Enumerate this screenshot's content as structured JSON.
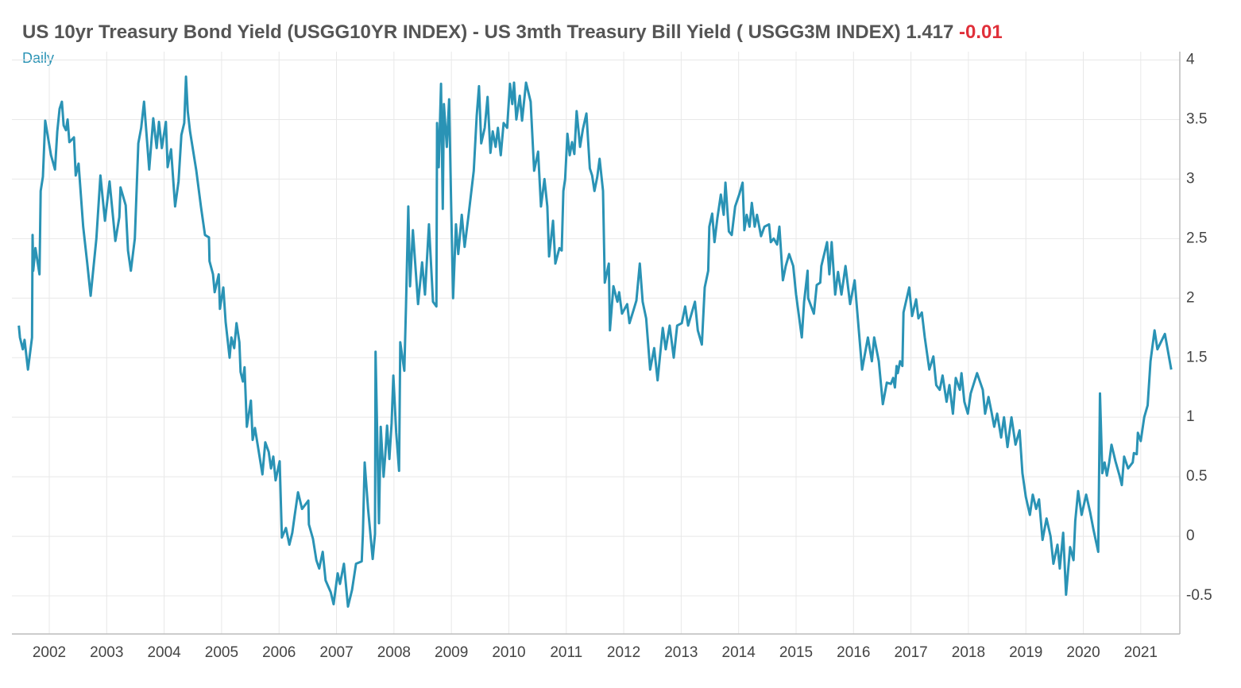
{
  "chart_data": {
    "type": "line",
    "title": "US 10yr Treasury Bond Yield (USGG10YR INDEX) - US 3mth Treasury Bill Yield ( USGG3M INDEX)",
    "last_value": "1.417",
    "change": "-0.01",
    "frequency": "Daily",
    "color": "#2a93b5",
    "change_color": "#e0303a",
    "xlim": [
      2001.35,
      2021.68
    ],
    "xticks": [
      2002,
      2003,
      2004,
      2005,
      2006,
      2007,
      2008,
      2009,
      2010,
      2011,
      2012,
      2013,
      2014,
      2015,
      2016,
      2017,
      2018,
      2019,
      2020,
      2021
    ],
    "ylim": [
      -0.82,
      4.07
    ],
    "yticks": [
      -0.5,
      0,
      0.5,
      1,
      1.5,
      2,
      2.5,
      3,
      3.5,
      4
    ],
    "grid": true,
    "x": [
      2001.47,
      2001.49,
      2001.54,
      2001.57,
      2001.63,
      2001.7,
      2001.71,
      2001.72,
      2001.76,
      2001.83,
      2001.85,
      2001.89,
      2001.93,
      2002.03,
      2002.1,
      2002.14,
      2002.18,
      2002.22,
      2002.25,
      2002.29,
      2002.32,
      2002.35,
      2002.43,
      2002.46,
      2002.51,
      2002.59,
      2002.66,
      2002.72,
      2002.82,
      2002.89,
      2002.97,
      2003.05,
      2003.15,
      2003.22,
      2003.24,
      2003.33,
      2003.37,
      2003.42,
      2003.49,
      2003.55,
      2003.6,
      2003.65,
      2003.74,
      2003.81,
      2003.87,
      2003.91,
      2003.96,
      2004.03,
      2004.06,
      2004.12,
      2004.19,
      2004.25,
      2004.3,
      2004.35,
      2004.38,
      2004.41,
      2004.45,
      2004.56,
      2004.64,
      2004.71,
      2004.78,
      2004.79,
      2004.85,
      2004.88,
      2004.95,
      2004.97,
      2005.03,
      2005.07,
      2005.14,
      2005.17,
      2005.22,
      2005.26,
      2005.31,
      2005.33,
      2005.37,
      2005.4,
      2005.44,
      2005.51,
      2005.54,
      2005.58,
      2005.71,
      2005.76,
      2005.82,
      2005.86,
      2005.9,
      2005.94,
      2006.01,
      2006.05,
      2006.12,
      2006.18,
      2006.23,
      2006.27,
      2006.33,
      2006.4,
      2006.51,
      2006.52,
      2006.59,
      2006.65,
      2006.7,
      2006.76,
      2006.81,
      2006.9,
      2006.95,
      2007.02,
      2007.06,
      2007.13,
      2007.2,
      2007.27,
      2007.34,
      2007.44,
      2007.46,
      2007.49,
      2007.55,
      2007.6,
      2007.63,
      2007.67,
      2007.68,
      2007.74,
      2007.77,
      2007.82,
      2007.85,
      2007.88,
      2007.92,
      2007.96,
      2007.99,
      2008.04,
      2008.09,
      2008.11,
      2008.18,
      2008.21,
      2008.25,
      2008.28,
      2008.33,
      2008.42,
      2008.49,
      2008.54,
      2008.61,
      2008.68,
      2008.74,
      2008.75,
      2008.78,
      2008.82,
      2008.85,
      2008.87,
      2008.92,
      2008.96,
      2009.0,
      2009.03,
      2009.08,
      2009.12,
      2009.18,
      2009.23,
      2009.3,
      2009.39,
      2009.44,
      2009.48,
      2009.52,
      2009.58,
      2009.63,
      2009.68,
      2009.72,
      2009.77,
      2009.81,
      2009.86,
      2009.91,
      2009.97,
      2010.02,
      2010.06,
      2010.09,
      2010.13,
      2010.19,
      2010.23,
      2010.3,
      2010.38,
      2010.44,
      2010.51,
      2010.56,
      2010.62,
      2010.67,
      2010.7,
      2010.77,
      2010.81,
      2010.88,
      2010.92,
      2010.95,
      2010.98,
      2011.02,
      2011.06,
      2011.1,
      2011.14,
      2011.18,
      2011.24,
      2011.29,
      2011.35,
      2011.41,
      2011.45,
      2011.49,
      2011.54,
      2011.58,
      2011.64,
      2011.67,
      2011.74,
      2011.76,
      2011.82,
      2011.89,
      2011.92,
      2011.97,
      2012.06,
      2012.1,
      2012.17,
      2012.22,
      2012.28,
      2012.33,
      2012.39,
      2012.46,
      2012.53,
      2012.59,
      2012.68,
      2012.73,
      2012.8,
      2012.87,
      2012.93,
      2013.01,
      2013.07,
      2013.12,
      2013.18,
      2013.24,
      2013.29,
      2013.36,
      2013.41,
      2013.47,
      2013.49,
      2013.54,
      2013.58,
      2013.63,
      2013.69,
      2013.74,
      2013.77,
      2013.83,
      2013.88,
      2013.94,
      2014.01,
      2014.07,
      2014.1,
      2014.14,
      2014.19,
      2014.23,
      2014.28,
      2014.32,
      2014.39,
      2014.45,
      2014.53,
      2014.56,
      2014.61,
      2014.67,
      2014.71,
      2014.77,
      2014.82,
      2014.88,
      2014.95,
      2015.0,
      2015.1,
      2015.14,
      2015.2,
      2015.21,
      2015.31,
      2015.36,
      2015.42,
      2015.44,
      2015.54,
      2015.58,
      2015.62,
      2015.68,
      2015.73,
      2015.79,
      2015.86,
      2015.94,
      2016.02,
      2016.15,
      2016.25,
      2016.32,
      2016.36,
      2016.44,
      2016.51,
      2016.58,
      2016.65,
      2016.69,
      2016.72,
      2016.75,
      2016.77,
      2016.81,
      2016.85,
      2016.87,
      2016.97,
      2017.02,
      2017.09,
      2017.13,
      2017.19,
      2017.24,
      2017.32,
      2017.39,
      2017.44,
      2017.5,
      2017.55,
      2017.62,
      2017.67,
      2017.73,
      2017.78,
      2017.85,
      2017.88,
      2017.93,
      2017.99,
      2018.04,
      2018.15,
      2018.25,
      2018.29,
      2018.35,
      2018.4,
      2018.45,
      2018.5,
      2018.57,
      2018.62,
      2018.68,
      2018.75,
      2018.82,
      2018.89,
      2018.94,
      2019.0,
      2019.07,
      2019.12,
      2019.18,
      2019.23,
      2019.29,
      2019.36,
      2019.43,
      2019.48,
      2019.55,
      2019.59,
      2019.65,
      2019.7,
      2019.77,
      2019.83,
      2019.86,
      2019.91,
      2019.97,
      2020.05,
      2020.12,
      2020.18,
      2020.26,
      2020.29,
      2020.33,
      2020.37,
      2020.41,
      2020.45,
      2020.49,
      2020.56,
      2020.63,
      2020.67,
      2020.71,
      2020.78,
      2020.86,
      2020.88,
      2020.93,
      2020.95,
      2021.0,
      2021.06,
      2021.12,
      2021.17,
      2021.24,
      2021.29,
      2021.42,
      2021.53
    ],
    "values": [
      1.77,
      1.67,
      1.57,
      1.65,
      1.4,
      1.67,
      2.53,
      2.23,
      2.42,
      2.2,
      2.9,
      3.02,
      3.49,
      3.2,
      3.08,
      3.4,
      3.59,
      3.65,
      3.45,
      3.41,
      3.5,
      3.31,
      3.35,
      3.03,
      3.13,
      2.6,
      2.3,
      2.02,
      2.5,
      3.03,
      2.65,
      2.98,
      2.48,
      2.68,
      2.93,
      2.78,
      2.4,
      2.23,
      2.5,
      3.3,
      3.43,
      3.65,
      3.08,
      3.51,
      3.26,
      3.48,
      3.26,
      3.48,
      3.1,
      3.25,
      2.77,
      2.98,
      3.37,
      3.47,
      3.86,
      3.57,
      3.4,
      3.07,
      2.77,
      2.53,
      2.51,
      2.31,
      2.2,
      2.05,
      2.2,
      1.91,
      2.09,
      1.8,
      1.5,
      1.67,
      1.58,
      1.79,
      1.63,
      1.38,
      1.3,
      1.42,
      0.92,
      1.14,
      0.81,
      0.91,
      0.52,
      0.79,
      0.71,
      0.57,
      0.67,
      0.47,
      0.63,
      -0.01,
      0.07,
      -0.07,
      0.03,
      0.17,
      0.37,
      0.23,
      0.3,
      0.1,
      -0.02,
      -0.2,
      -0.27,
      -0.13,
      -0.37,
      -0.47,
      -0.57,
      -0.31,
      -0.4,
      -0.23,
      -0.59,
      -0.45,
      -0.23,
      -0.21,
      0.03,
      0.62,
      0.23,
      -0.03,
      -0.19,
      0.02,
      1.55,
      0.11,
      0.92,
      0.5,
      0.69,
      0.93,
      0.65,
      0.95,
      1.35,
      0.87,
      0.55,
      1.63,
      1.39,
      1.93,
      2.77,
      2.1,
      2.57,
      1.95,
      2.3,
      2.03,
      2.62,
      1.97,
      1.93,
      3.47,
      3.1,
      3.8,
      2.75,
      3.63,
      3.27,
      3.67,
      2.7,
      2.0,
      2.62,
      2.37,
      2.7,
      2.43,
      2.7,
      3.07,
      3.53,
      3.78,
      3.3,
      3.43,
      3.69,
      3.22,
      3.4,
      3.27,
      3.43,
      3.2,
      3.47,
      3.43,
      3.8,
      3.63,
      3.81,
      3.5,
      3.7,
      3.49,
      3.81,
      3.65,
      3.07,
      3.23,
      2.77,
      3.0,
      2.77,
      2.35,
      2.65,
      2.29,
      2.42,
      2.4,
      2.9,
      3.0,
      3.38,
      3.2,
      3.31,
      3.21,
      3.57,
      3.27,
      3.42,
      3.55,
      3.09,
      3.03,
      2.9,
      3.02,
      3.17,
      2.9,
      2.13,
      2.29,
      1.73,
      2.1,
      1.97,
      2.05,
      1.87,
      1.95,
      1.79,
      1.9,
      1.98,
      2.29,
      1.97,
      1.83,
      1.4,
      1.58,
      1.31,
      1.75,
      1.57,
      1.77,
      1.5,
      1.77,
      1.79,
      1.93,
      1.77,
      1.87,
      1.97,
      1.73,
      1.61,
      2.09,
      2.23,
      2.6,
      2.71,
      2.47,
      2.67,
      2.87,
      2.7,
      2.97,
      2.56,
      2.53,
      2.77,
      2.87,
      2.97,
      2.57,
      2.7,
      2.6,
      2.8,
      2.6,
      2.7,
      2.52,
      2.6,
      2.62,
      2.47,
      2.5,
      2.45,
      2.6,
      2.15,
      2.27,
      2.37,
      2.27,
      2.03,
      1.67,
      1.97,
      2.23,
      2.0,
      1.87,
      2.11,
      2.13,
      2.27,
      2.47,
      2.2,
      2.47,
      2.03,
      2.22,
      2.03,
      2.27,
      1.95,
      2.15,
      1.4,
      1.67,
      1.47,
      1.67,
      1.47,
      1.11,
      1.29,
      1.28,
      1.33,
      1.25,
      1.43,
      1.37,
      1.47,
      1.43,
      1.88,
      2.09,
      1.85,
      1.99,
      1.83,
      1.88,
      1.67,
      1.4,
      1.51,
      1.27,
      1.23,
      1.35,
      1.13,
      1.27,
      1.03,
      1.33,
      1.23,
      1.37,
      1.13,
      1.03,
      1.2,
      1.37,
      1.23,
      1.03,
      1.17,
      1.05,
      0.92,
      1.03,
      0.83,
      1.0,
      0.75,
      1.0,
      0.77,
      0.89,
      0.53,
      0.33,
      0.18,
      0.35,
      0.23,
      0.31,
      -0.03,
      0.15,
      0.0,
      -0.23,
      -0.07,
      -0.27,
      0.03,
      -0.49,
      -0.09,
      -0.2,
      0.13,
      0.38,
      0.18,
      0.35,
      0.2,
      0.05,
      -0.13,
      1.2,
      0.53,
      0.62,
      0.51,
      0.62,
      0.77,
      0.63,
      0.51,
      0.43,
      0.67,
      0.57,
      0.62,
      0.7,
      0.69,
      0.87,
      0.8,
      1.0,
      1.1,
      1.47,
      1.73,
      1.57,
      1.7,
      1.4
    ]
  }
}
